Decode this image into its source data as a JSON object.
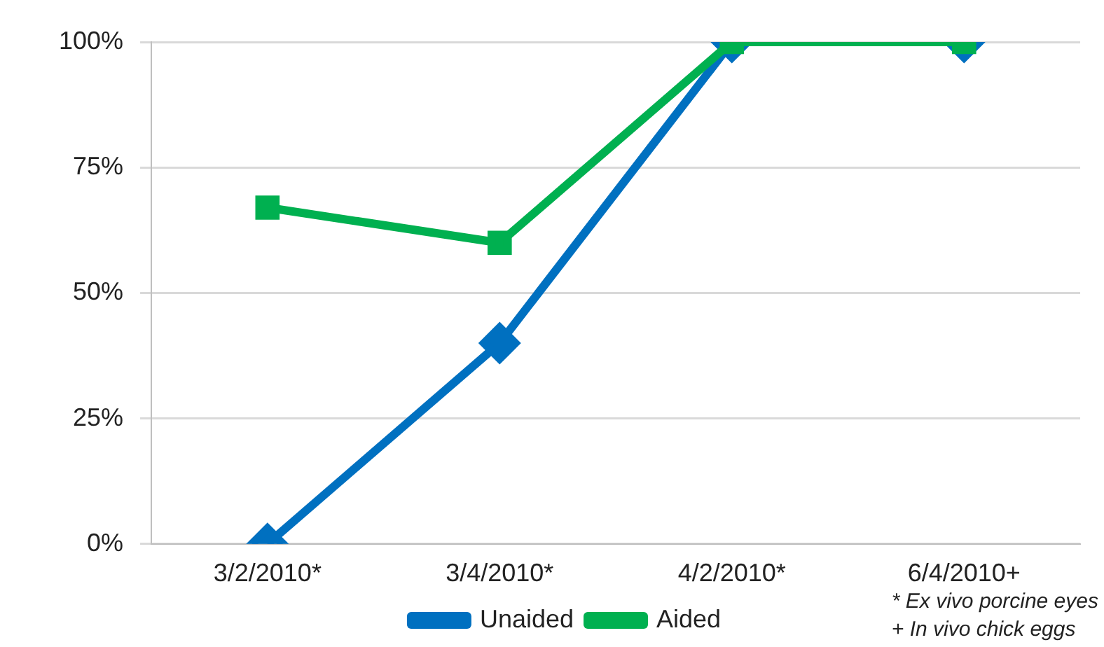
{
  "chart_data": {
    "type": "line",
    "categories": [
      "3/2/2010*",
      "3/4/2010*",
      "4/2/2010*",
      "6/4/2010+"
    ],
    "series": [
      {
        "name": "Unaided",
        "color": "#0070c0",
        "marker": "diamond",
        "values": [
          0,
          40,
          100,
          100
        ]
      },
      {
        "name": "Aided",
        "color": "#00b050",
        "marker": "square",
        "values": [
          67,
          60,
          100,
          100
        ]
      }
    ],
    "ylim": [
      0,
      100
    ],
    "yticks": [
      {
        "value": 0,
        "label": "0%"
      },
      {
        "value": 25,
        "label": "25%"
      },
      {
        "value": 50,
        "label": "50%"
      },
      {
        "value": 75,
        "label": "75%"
      },
      {
        "value": 100,
        "label": "100%"
      }
    ],
    "grid": "y",
    "legend": "bottom",
    "annotations": [
      "* Ex vivo porcine eyes",
      "+ In vivo chick eggs"
    ]
  }
}
